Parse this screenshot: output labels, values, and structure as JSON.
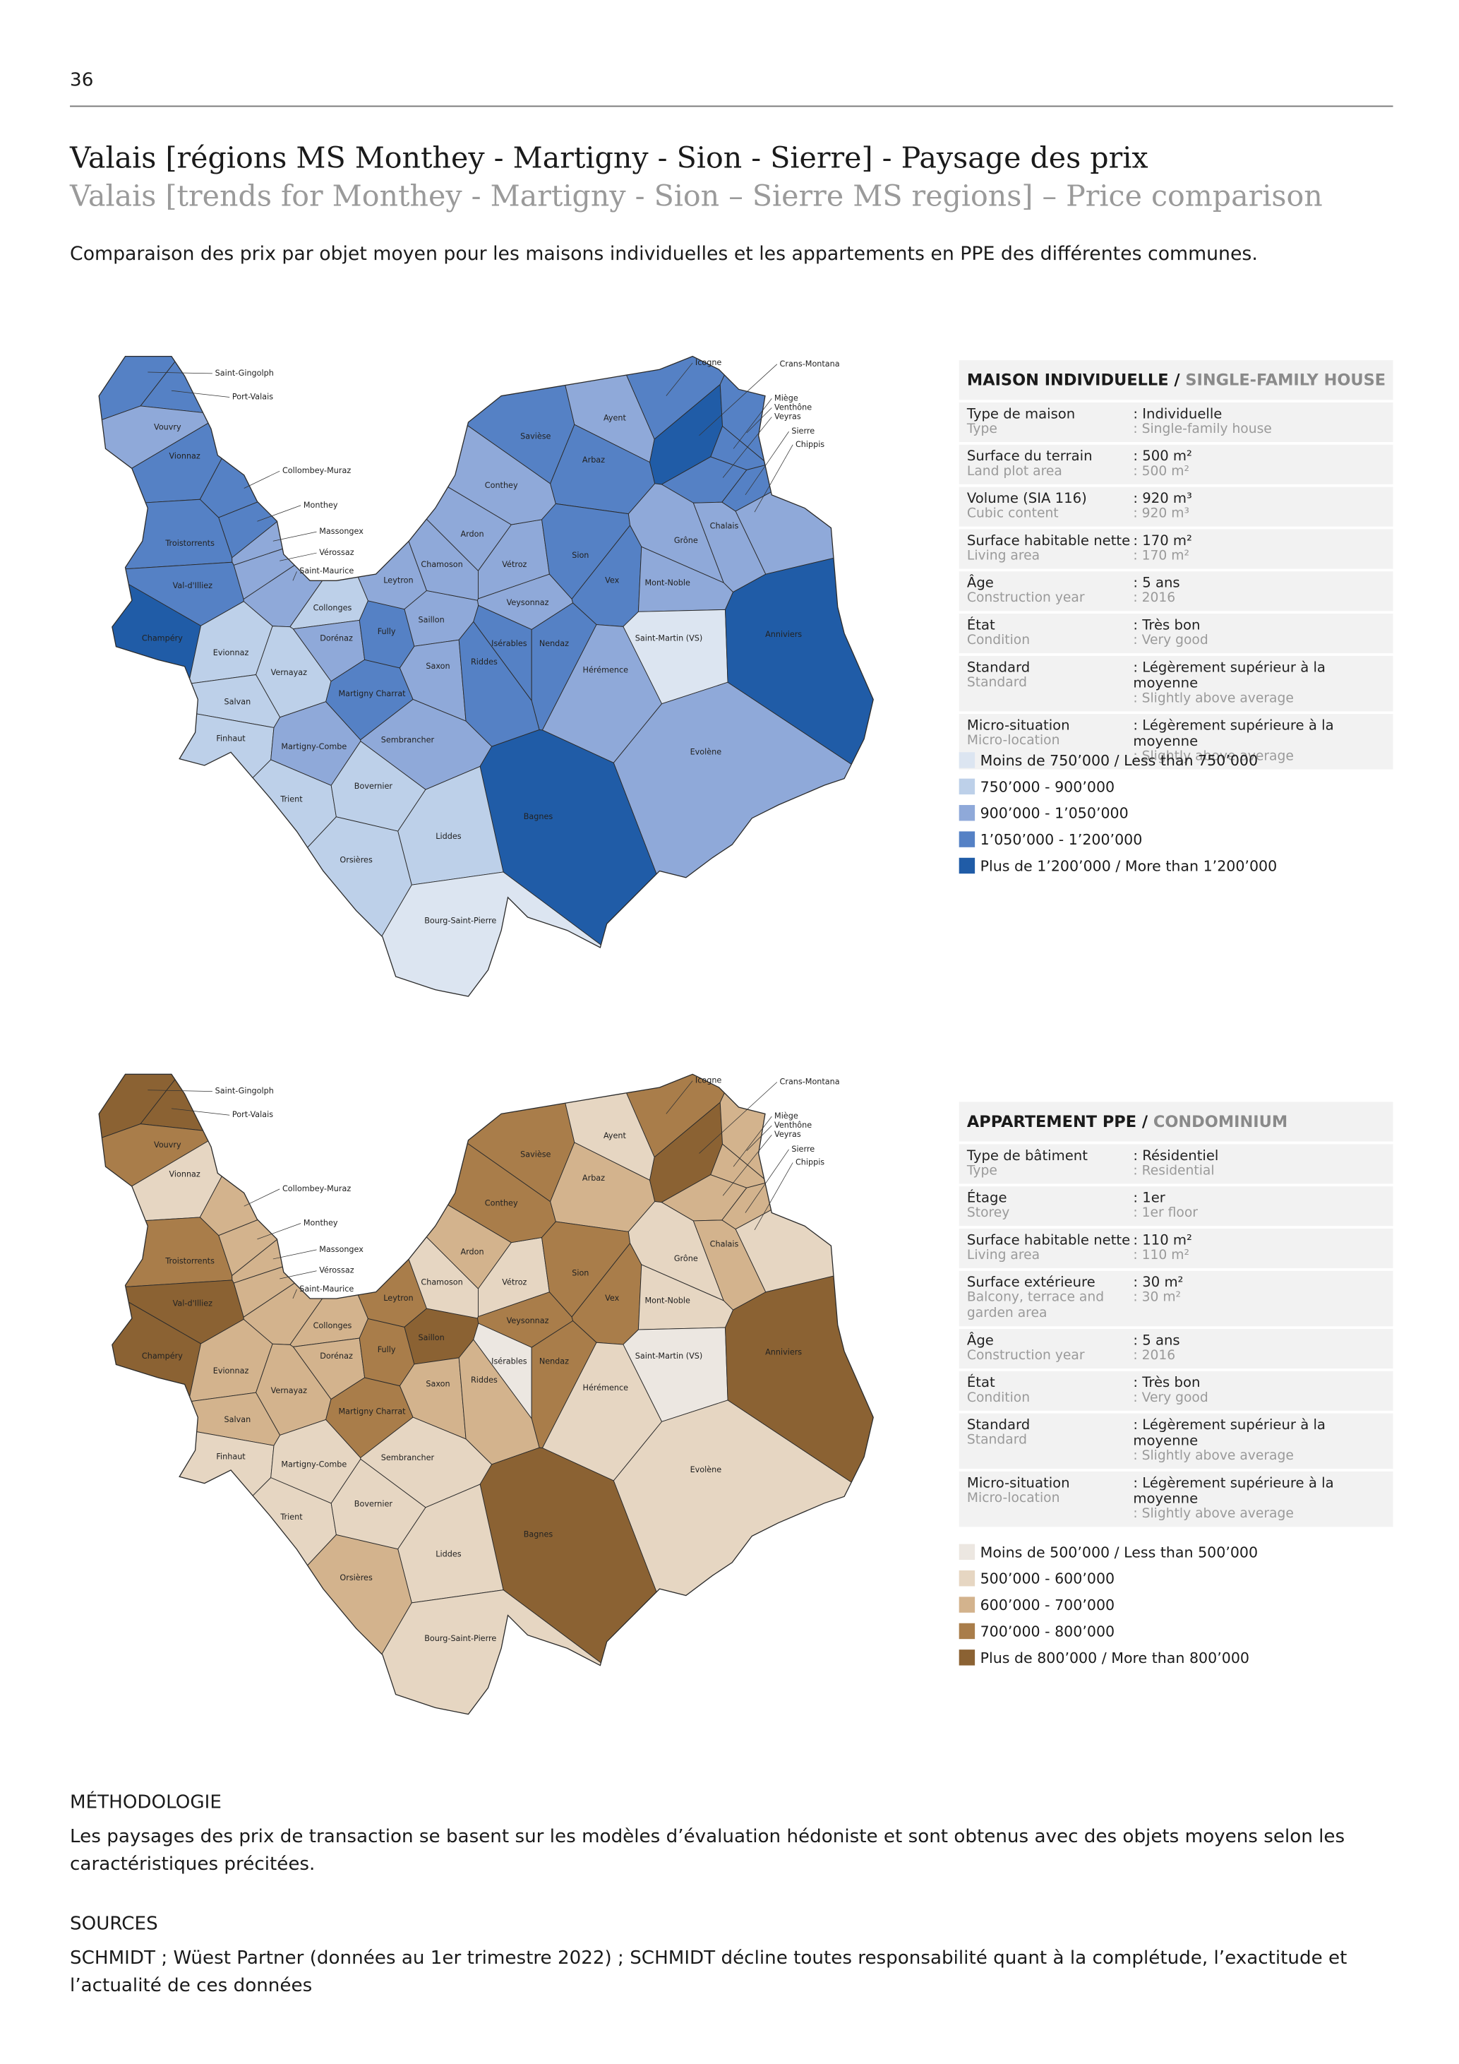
{
  "page_number": "36",
  "title": "Valais [régions MS Monthey - Martigny - Sion - Sierre] - Paysage des prix",
  "subtitle": "Valais [trends for Monthey - Martigny - Sion – Sierre MS regions] – Price comparison",
  "intro": "Comparaison des prix par objet moyen pour les maisons individuelles et les appartements en PPE des différentes communes.",
  "maps": [
    {
      "labels": [
        "Saint-Gingolph",
        "Port-Valais",
        "Vouvry",
        "Vionnaz",
        "Collombey-Muraz",
        "Monthey",
        "Troistorrents",
        "Massongex",
        "Vérossaz",
        "Saint-Maurice",
        "Val-d'Illiez",
        "Champéry",
        "Evionnaz",
        "Collonges",
        "Dorénaz",
        "Vernayaz",
        "Salvan",
        "Finhaut",
        "Martigny-Combe",
        "Trient",
        "Martigny Charrat",
        "Fully",
        "Leytron",
        "Saillon",
        "Saxon",
        "Chamoson",
        "Ardon",
        "Vétroz",
        "Conthey",
        "Savièse",
        "Ayent",
        "Arbaz",
        "Icogne",
        "Crans-Montana",
        "Miège",
        "Venthône",
        "Veyras",
        "Sierre",
        "Chippis",
        "Sion",
        "Grône",
        "Chalais",
        "Vex",
        "Mont-Noble",
        "Veysonnaz",
        "Isérables",
        "Nendaz",
        "Riddes",
        "Saint-Martin (VS)",
        "Hérémence",
        "Evolène",
        "Anniviers",
        "Sembrancher",
        "Bovernier",
        "Bagnes",
        "Liddes",
        "Orsières",
        "Bourg-Saint-Pierre"
      ]
    },
    {
      "labels": [
        "Saint-Gingolph",
        "Port-Valais",
        "Vouvry",
        "Vionnaz",
        "Collombey-Muraz",
        "Monthey",
        "Troistorrents",
        "Massongex",
        "Vérossaz",
        "Saint-Maurice",
        "Val-d'Illiez",
        "Champéry",
        "Evionnaz",
        "Collonges",
        "Dorénaz",
        "Vernayaz",
        "Salvan",
        "Finhaut",
        "Martigny-Combe",
        "Trient",
        "Martigny Charrat",
        "Fully",
        "Leytron",
        "Saillon",
        "Saxon",
        "Chamoson",
        "Ardon",
        "Vétroz",
        "Conthey",
        "Savièse",
        "Ayent",
        "Arbaz",
        "Icogne",
        "Crans-Montana",
        "Miège",
        "Venthône",
        "Veyras",
        "Sierre",
        "Chippis",
        "Sion",
        "Grône",
        "Chalais",
        "Vex",
        "Mont-Noble",
        "Veysonnaz",
        "Isérables",
        "Nendaz",
        "Riddes",
        "Saint-Martin (VS)",
        "Hérémence",
        "Evolène",
        "Anniviers",
        "Sembrancher",
        "Bovernier",
        "Bagnes",
        "Liddes",
        "Orsières",
        "Bourg-Saint-Pierre"
      ]
    }
  ],
  "panels": [
    {
      "title_fr": "MAISON INDIVIDUELLE /",
      "title_en": "SINGLE-FAMILY HOUSE",
      "rows": [
        {
          "label": "Type de maison",
          "label_en": "Type",
          "value": ": Individuelle",
          "value_en": ": Single-family house"
        },
        {
          "label": "Surface du terrain",
          "label_en": "Land plot area",
          "value": ": 500 m²",
          "value_en": ": 500 m²"
        },
        {
          "label": "Volume (SIA 116)",
          "label_en": "Cubic content",
          "value": ": 920 m³",
          "value_en": ": 920 m³"
        },
        {
          "label": "Surface habitable nette",
          "label_en": "Living area",
          "value": ": 170 m²",
          "value_en": ": 170 m²"
        },
        {
          "label": "Âge",
          "label_en": "Construction year",
          "value": ": 5 ans",
          "value_en": ": 2016"
        },
        {
          "label": "État",
          "label_en": "Condition",
          "value": ": Très bon",
          "value_en": ": Very good"
        },
        {
          "label": "Standard",
          "label_en": "Standard",
          "value": ": Légèrement supérieur à la moyenne",
          "value_en": ": Slightly above average"
        },
        {
          "label": "Micro-situation",
          "label_en": "Micro-location",
          "value": ": Légèrement supérieure à la moyenne",
          "value_en": ": Slightly above average"
        }
      ],
      "legend": [
        {
          "label": "Moins de 750’000 / Less than 750’000",
          "color": "#dce5f1"
        },
        {
          "label": "750’000 - 900’000",
          "color": "#bdd0e9"
        },
        {
          "label": "900’000 - 1’050’000",
          "color": "#8fa9d9"
        },
        {
          "label": "1’050’000 - 1’200’000",
          "color": "#5581c5"
        },
        {
          "label": "Plus de 1’200’000 / More than 1’200’000",
          "color": "#205ca7"
        }
      ]
    },
    {
      "title_fr": "APPARTEMENT PPE /",
      "title_en": "CONDOMINIUM",
      "rows": [
        {
          "label": "Type de bâtiment",
          "label_en": "Type",
          "value": ": Résidentiel",
          "value_en": ": Residential"
        },
        {
          "label": "Étage",
          "label_en": "Storey",
          "value": ": 1er",
          "value_en": ": 1er floor"
        },
        {
          "label": "Surface habitable nette",
          "label_en": "Living area",
          "value": ": 110 m²",
          "value_en": ": 110 m²"
        },
        {
          "label": "Surface extérieure",
          "label_en": "Balcony, terrace and garden area",
          "value": ": 30 m²",
          "value_en": ": 30 m²"
        },
        {
          "label": "Âge",
          "label_en": "Construction year",
          "value": ": 5 ans",
          "value_en": ": 2016"
        },
        {
          "label": "État",
          "label_en": "Condition",
          "value": ": Très bon",
          "value_en": ": Very good"
        },
        {
          "label": "Standard",
          "label_en": "Standard",
          "value": ": Légèrement supérieur à la moyenne",
          "value_en": ": Slightly above average"
        },
        {
          "label": "Micro-situation",
          "label_en": "Micro-location",
          "value": ": Légèrement supérieure à la moyenne",
          "value_en": ": Slightly above average"
        }
      ],
      "legend": [
        {
          "label": "Moins de 500’000 / Less than 500’000",
          "color": "#ece7e1"
        },
        {
          "label": "500’000 - 600’000",
          "color": "#e6d6c2"
        },
        {
          "label": "600’000 - 700’000",
          "color": "#d3b38d"
        },
        {
          "label": "700’000 - 800’000",
          "color": "#a97d4a"
        },
        {
          "label": "Plus de 800’000 / More than 800’000",
          "color": "#8b6233"
        }
      ]
    }
  ],
  "methodology": {
    "heading": "MÉTHODOLOGIE",
    "text": "Les paysages des prix de transaction se basent sur les modèles d’évaluation hédoniste et sont obtenus avec des objets moyens selon les caractéristiques précitées."
  },
  "sources": {
    "heading": "SOURCES",
    "text": "SCHMIDT ; Wüest Partner (données au 1er trimestre 2022) ; SCHMIDT décline toutes responsabilité quant à la complétude, l’exactitude et l’actualité de ces données"
  }
}
